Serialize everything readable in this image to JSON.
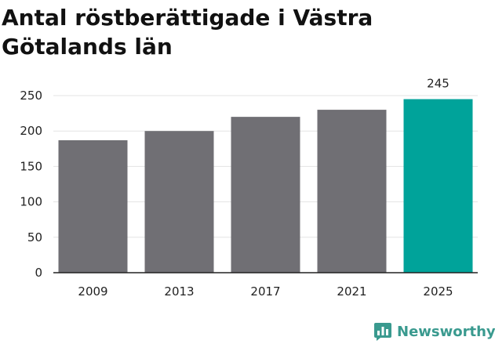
{
  "title_line1": "Antal röstberättigade i Västra",
  "title_line2": "Götalands län",
  "brand": {
    "label": "Newsworthy",
    "color": "#3a9a8f",
    "icon": "bar-chart-logo-icon"
  },
  "colors": {
    "default_bar": "#706f74",
    "highlight_bar": "#00a39a",
    "grid": "#e3e3e3",
    "axis": "#222222",
    "text": "#222222"
  },
  "chart_data": {
    "type": "bar",
    "title": "Antal röstberättigade i Västra Götalands län",
    "categories": [
      "2009",
      "2013",
      "2017",
      "2021",
      "2025"
    ],
    "values": [
      187,
      200,
      220,
      230,
      245
    ],
    "highlight_index": 4,
    "data_labels": [
      null,
      null,
      null,
      null,
      "245"
    ],
    "ylim": [
      0,
      250
    ],
    "yticks": [
      0,
      50,
      100,
      150,
      200,
      250
    ],
    "xlabel": "",
    "ylabel": "",
    "grid": true,
    "legend": "none"
  }
}
